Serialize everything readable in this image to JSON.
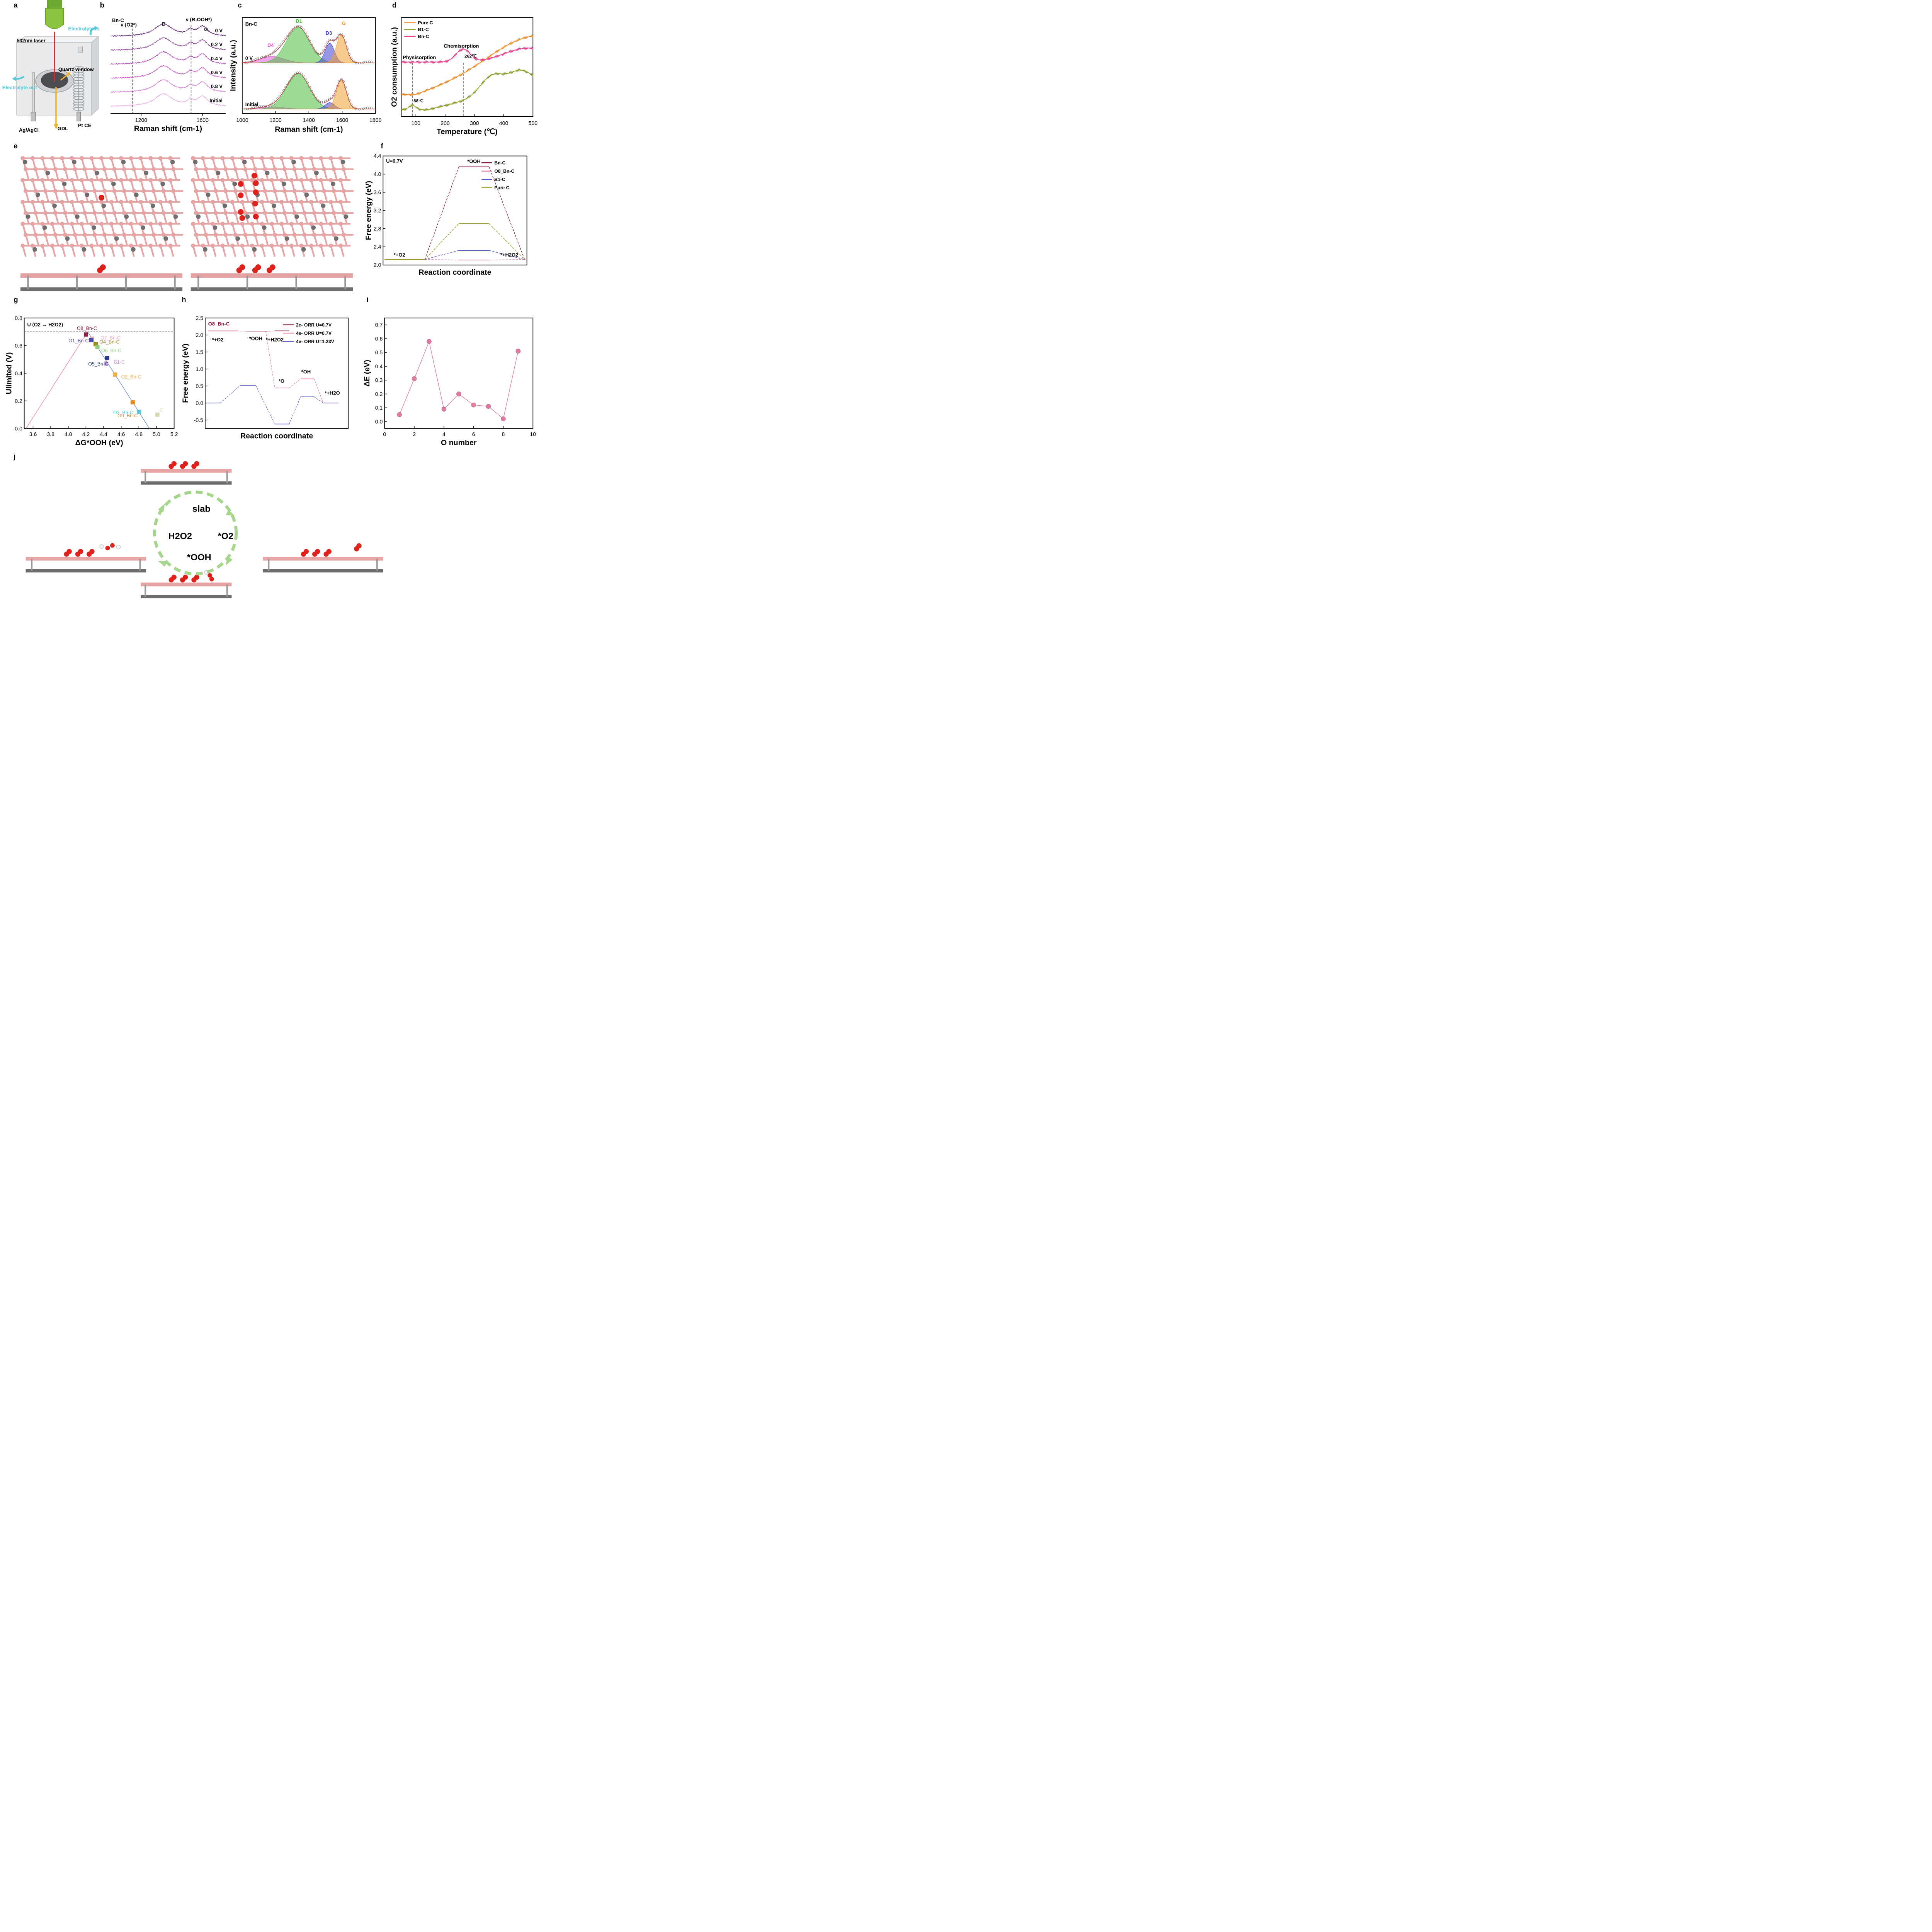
{
  "panel_labels": [
    "a",
    "b",
    "c",
    "d",
    "e",
    "f",
    "g",
    "h",
    "i",
    "j"
  ],
  "schematic_a": {
    "laser": "532nm laser",
    "electrolyte_in": "Electrolyte in",
    "electrolyte_out": "Electrolyte out",
    "quartz": "Quartz window",
    "ref": "Ag/AgCl",
    "gdl": "GDL",
    "ce": "Pt CE",
    "colors": {
      "laser": "#8bc43f",
      "beam": "#c0392b",
      "arrow": "#f0b429",
      "flow": "#5bc8d8"
    }
  },
  "molecule_colors": {
    "boron": "#e6a4a4",
    "carbon": "#6e6e6e",
    "oxygen": "#e0201b",
    "hydrogen": "#f4f4f4"
  },
  "cycle_j": {
    "center": "slab",
    "right": "*O2",
    "bottom": "*OOH",
    "left": "H2O2",
    "arrow_color": "#a5d68b"
  },
  "chart_data": [
    {
      "id": "b",
      "type": "line",
      "tag": "Bn-C",
      "xlabel": "Raman shift (cm-1)",
      "ylabel": "",
      "xlim": [
        1000,
        1750
      ],
      "xticks": [
        1200,
        1600
      ],
      "series": [
        {
          "name": "0 V",
          "color": "#5a2370"
        },
        {
          "name": "0.2 V",
          "color": "#8a3a95"
        },
        {
          "name": "0.4 V",
          "color": "#b04ab0"
        },
        {
          "name": "0.6 V",
          "color": "#c85bc4"
        },
        {
          "name": "0.8 V",
          "color": "#d97dd3"
        },
        {
          "name": "Initial",
          "color": "#e9aee2"
        }
      ],
      "peaks": {
        "D": 1345,
        "G": 1600,
        "shoulder": 1520
      },
      "annotations": [
        "ν (O2*)",
        "D",
        "ν (R-OOH*)",
        "G"
      ],
      "vlines": [
        1145,
        1525
      ]
    },
    {
      "id": "c",
      "type": "line",
      "tag": "Bn-C",
      "xlabel": "Raman shift (cm-1)",
      "ylabel": "Intensity (a.u.)",
      "xlim": [
        1000,
        1800
      ],
      "xticks": [
        1000,
        1200,
        1400,
        1600,
        1800
      ],
      "spectra": [
        "0 V",
        "Initial"
      ],
      "components": [
        {
          "name": "D4",
          "center": 1180,
          "color": "#e05ad8"
        },
        {
          "name": "D1",
          "center": 1335,
          "color": "#4cbb3f"
        },
        {
          "name": "D3",
          "center": 1525,
          "color": "#3f3fd0"
        },
        {
          "name": "G",
          "center": 1595,
          "color": "#f0a030"
        }
      ]
    },
    {
      "id": "d",
      "type": "line",
      "xlabel": "Temperature (℃)",
      "ylabel": "O2 consumption (a.u.)",
      "xlim": [
        50,
        500
      ],
      "xticks": [
        100,
        200,
        300,
        400,
        500
      ],
      "series": [
        {
          "name": "Pure C",
          "color": "#f08a24"
        },
        {
          "name": "B1-C",
          "color": "#8c9a22"
        },
        {
          "name": "Bn-C",
          "color": "#ea3a8a"
        }
      ],
      "annotations": [
        "Physisorption",
        "Chemisorption",
        "88℃",
        "262℃"
      ],
      "vlines": [
        88,
        262
      ]
    },
    {
      "id": "f",
      "type": "line",
      "tag": "U=0.7V",
      "xlabel": "Reaction coordinate",
      "ylabel": "Free energy (eV)",
      "ylim": [
        2.0,
        4.4
      ],
      "yticks": [
        2.0,
        2.4,
        2.8,
        3.2,
        3.6,
        4.0,
        4.4
      ],
      "steps": [
        "*+O2",
        "*OOH",
        "*+H2O2"
      ],
      "series": [
        {
          "name": "Bn-C",
          "color": "#8b1a3a",
          "values": [
            2.12,
            4.16,
            2.12
          ]
        },
        {
          "name": "O8_Bn-C",
          "color": "#e07aa0",
          "values": [
            2.12,
            2.11,
            2.12
          ]
        },
        {
          "name": "B1-C",
          "color": "#5555cc",
          "values": [
            2.12,
            2.32,
            2.12
          ]
        },
        {
          "name": "Pure C",
          "color": "#9a9a1a",
          "values": [
            2.12,
            2.91,
            2.12
          ]
        }
      ]
    },
    {
      "id": "g",
      "type": "scatter",
      "title": "U (O2 → H2O2)",
      "xlabel": "ΔG*OOH (eV)",
      "ylabel": "Ulimited (V)",
      "xlim": [
        3.5,
        5.2
      ],
      "ylim": [
        0.0,
        0.8
      ],
      "xticks": [
        3.6,
        3.8,
        4.0,
        4.2,
        4.4,
        4.6,
        4.8,
        5.0,
        5.2
      ],
      "yticks": [
        0.0,
        0.2,
        0.4,
        0.6,
        0.8
      ],
      "reference_line": 0.7,
      "volcano": {
        "left": [
          [
            3.52,
            0.0
          ],
          [
            4.22,
            0.7
          ]
        ],
        "right": [
          [
            4.22,
            0.7
          ],
          [
            4.92,
            0.0
          ]
        ]
      },
      "points": [
        {
          "label": "O8_Bn-C",
          "x": 4.2,
          "y": 0.68,
          "color": "#8b1a3a"
        },
        {
          "label": "O7_Bn-C",
          "x": 4.27,
          "y": 0.65,
          "color": "#e9a4b8"
        },
        {
          "label": "O1_Bn-C",
          "x": 4.26,
          "y": 0.64,
          "color": "#4a4aa8"
        },
        {
          "label": "O4_Bn-C",
          "x": 4.31,
          "y": 0.61,
          "color": "#9a8a1a"
        },
        {
          "label": "O6_Bn-C",
          "x": 4.33,
          "y": 0.59,
          "color": "#8fd07a"
        },
        {
          "label": "B1-C",
          "x": 4.43,
          "y": 0.47,
          "color": "#c8a0d8"
        },
        {
          "label": "O5_Bn-C",
          "x": 4.44,
          "y": 0.51,
          "color": "#2a3a8a"
        },
        {
          "label": "O2_Bn-C",
          "x": 4.53,
          "y": 0.39,
          "color": "#f0b050"
        },
        {
          "label": "O9_Bn-C",
          "x": 4.73,
          "y": 0.19,
          "color": "#f08a24"
        },
        {
          "label": "O3_Bn-C",
          "x": 4.8,
          "y": 0.12,
          "color": "#5cc8d8"
        },
        {
          "label": "C",
          "x": 5.01,
          "y": 0.1,
          "color": "#d8d8b0"
        }
      ]
    },
    {
      "id": "h",
      "type": "line",
      "tag": "O8_Bn-C",
      "xlabel": "Reaction coordinate",
      "ylabel": "Free energy (eV)",
      "ylim": [
        -0.75,
        2.5
      ],
      "yticks": [
        -0.5,
        0.0,
        0.5,
        1.0,
        1.5,
        2.0,
        2.5
      ],
      "steps": [
        "*+O2",
        "*OOH",
        "*+H2O2",
        "*O",
        "*OH",
        "*+H2O"
      ],
      "series": [
        {
          "name": "2e- ORR U=0.7V",
          "color": "#8b1a3a",
          "values": [
            2.12,
            2.11,
            2.12
          ]
        },
        {
          "name": "4e- ORR U=0.7V",
          "color": "#e07aa0",
          "values": [
            2.12,
            2.11,
            0.44,
            0.71,
            0.0
          ]
        },
        {
          "name": "4e- ORR U=1.23V",
          "color": "#5555cc",
          "values": [
            0.0,
            0.51,
            -0.62,
            0.18,
            0.0
          ]
        }
      ]
    },
    {
      "id": "i",
      "type": "line",
      "xlabel": "O number",
      "ylabel": "ΔE (eV)",
      "xlim": [
        0,
        10
      ],
      "ylim": [
        -0.05,
        0.75
      ],
      "xticks": [
        0,
        2,
        4,
        6,
        8,
        10
      ],
      "yticks": [
        0.0,
        0.1,
        0.2,
        0.3,
        0.4,
        0.5,
        0.6,
        0.7
      ],
      "x": [
        1,
        2,
        3,
        4,
        5,
        6,
        7,
        8,
        9
      ],
      "values": [
        0.05,
        0.31,
        0.58,
        0.09,
        0.2,
        0.12,
        0.11,
        0.02,
        0.51
      ],
      "color": "#e07aa0"
    }
  ]
}
